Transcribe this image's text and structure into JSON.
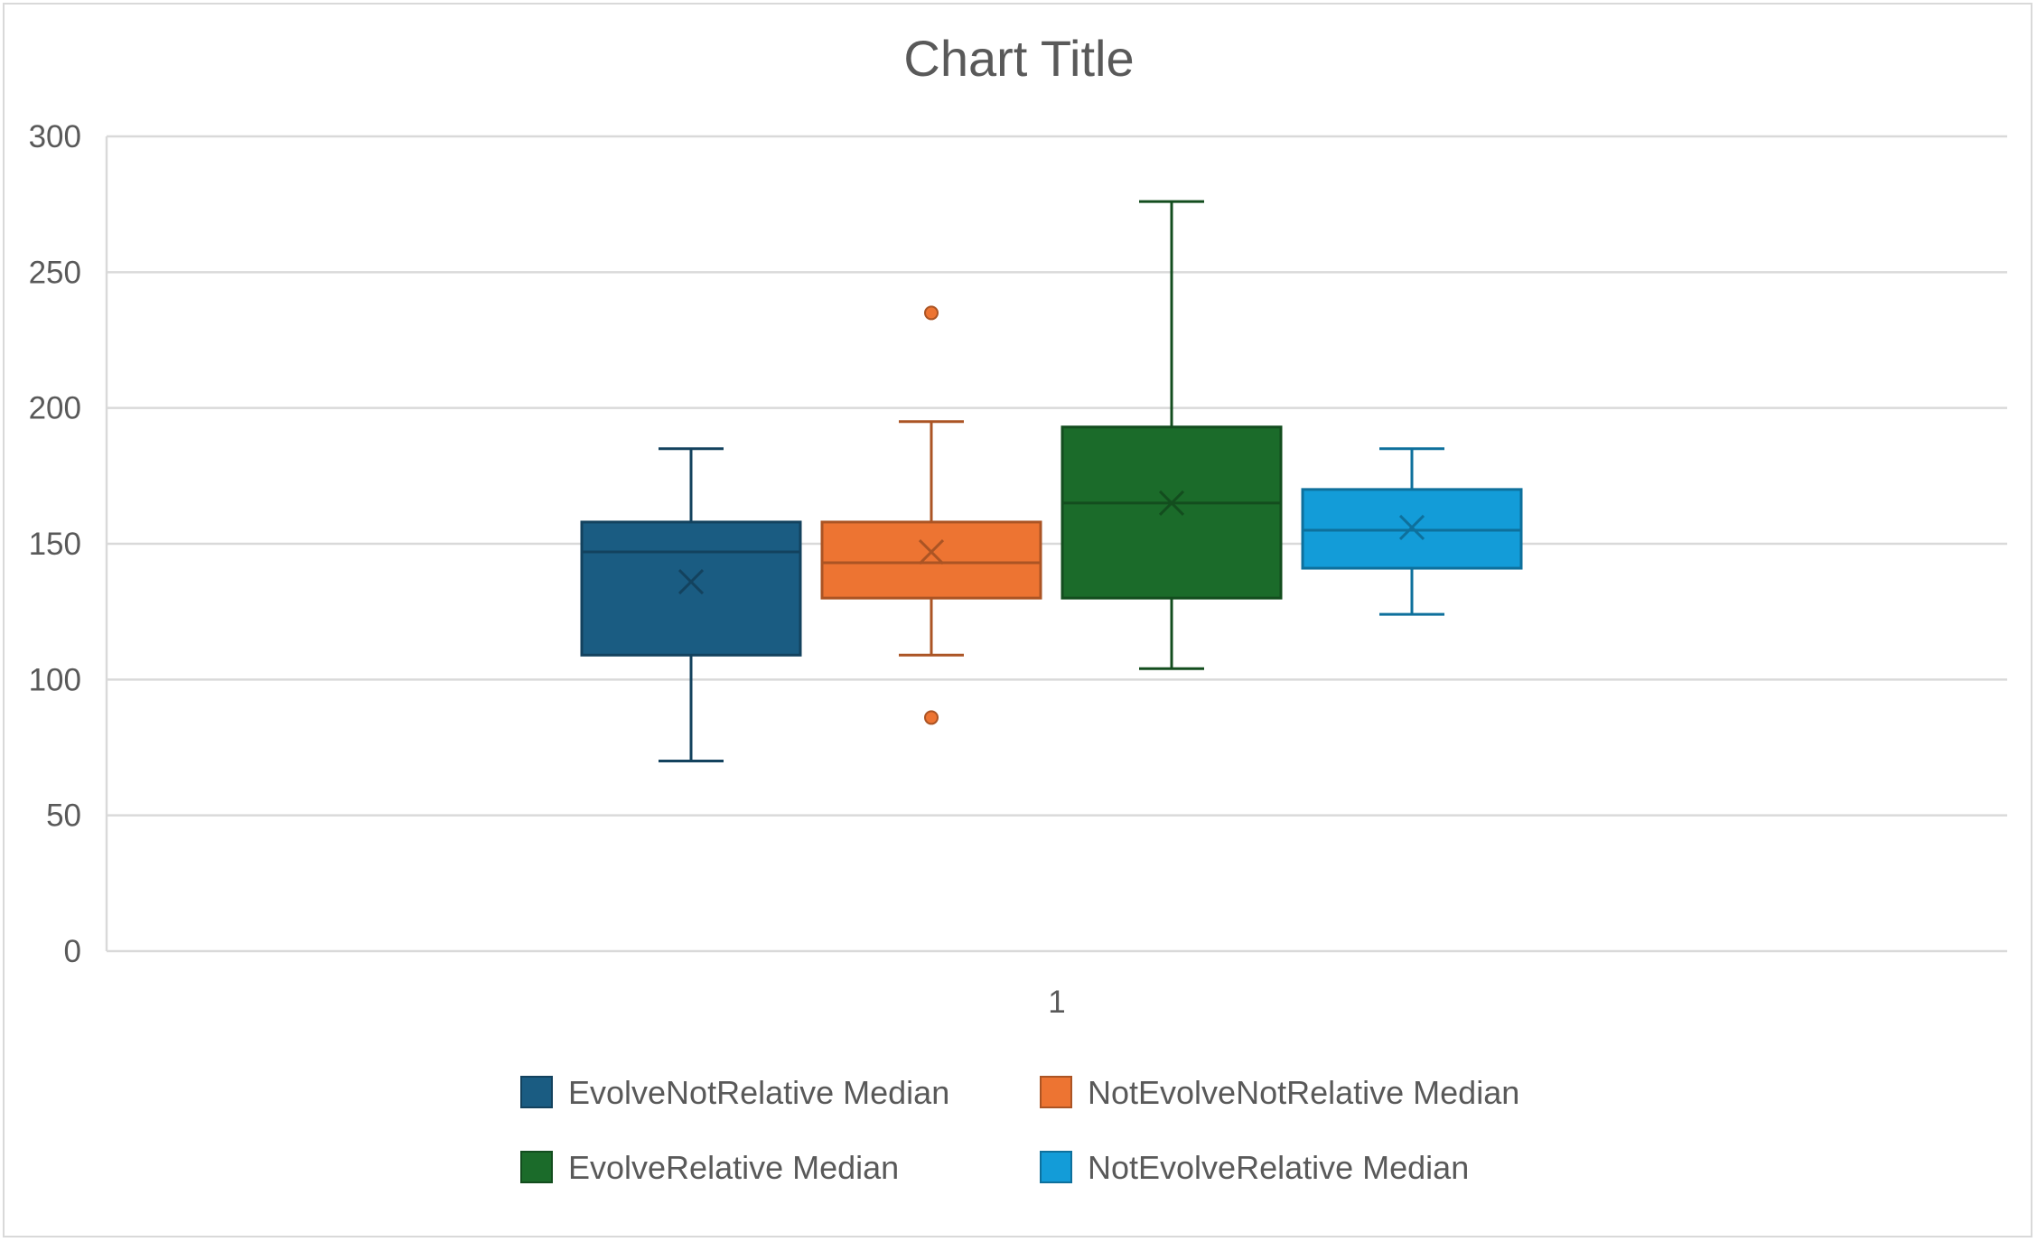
{
  "chart_data": {
    "type": "boxplot",
    "title": "Chart Title",
    "xlabel": "",
    "ylabel": "",
    "categories": [
      "1"
    ],
    "ylim": [
      0,
      300
    ],
    "yticks": [
      0,
      50,
      100,
      150,
      200,
      250,
      300
    ],
    "grid": true,
    "legend_position": "bottom",
    "series": [
      {
        "name": "EvolveNotRelative Median",
        "color": "#1a5c82",
        "min": 70,
        "q1": 109,
        "median": 147,
        "q3": 158,
        "max": 185,
        "mean": 136,
        "outliers": []
      },
      {
        "name": "NotEvolveNotRelative Median",
        "color": "#ed7432",
        "min": 109,
        "q1": 130,
        "median": 143,
        "q3": 158,
        "max": 195,
        "mean": 147,
        "outliers": [
          235,
          86
        ]
      },
      {
        "name": "EvolveRelative Median",
        "color": "#1b6b2a",
        "min": 104,
        "q1": 130,
        "median": 165,
        "q3": 193,
        "max": 276,
        "mean": 165,
        "outliers": []
      },
      {
        "name": "NotEvolveRelative Median",
        "color": "#139cd8",
        "min": 124,
        "q1": 141,
        "median": 155,
        "q3": 170,
        "max": 185,
        "mean": 156,
        "outliers": []
      }
    ]
  }
}
